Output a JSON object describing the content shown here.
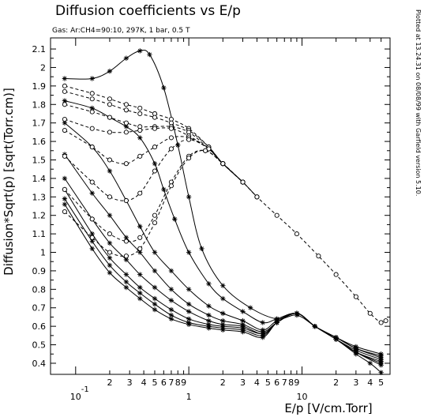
{
  "chart_data": {
    "type": "line",
    "title": "Diffusion coefficients vs E/p",
    "subtitle": "Gas: Ar:CH4=90:10, 297K, 1 bar, 0.5 T",
    "xlabel": "E/p [V/cm.Torr]",
    "ylabel": "Diffusion*Sqrt(p) [sqrt(Torr.cm)]",
    "side_note": "Plotted at 13.24.31 on 08/08/99 with Garfield version 5.10.",
    "x_scale": "log",
    "xlim": [
      0.06,
      60
    ],
    "ylim": [
      0.34,
      2.16
    ],
    "grid": false,
    "x_decades": [
      {
        "label": "10",
        "exp": "-1",
        "value": 0.1
      },
      {
        "label": "1",
        "exp": "",
        "value": 1
      },
      {
        "label": "10",
        "exp": "",
        "value": 10
      }
    ],
    "x_minor": [
      {
        "v": 0.2,
        "label": "2"
      },
      {
        "v": 0.3,
        "label": "3"
      },
      {
        "v": 0.4,
        "label": "4"
      },
      {
        "v": 0.5,
        "label": "5"
      },
      {
        "v": 0.6,
        "label": "6"
      },
      {
        "v": 0.7,
        "label": "7"
      },
      {
        "v": 0.8,
        "label": "8"
      },
      {
        "v": 0.9,
        "label": "9"
      },
      {
        "v": 2,
        "label": "2"
      },
      {
        "v": 3,
        "label": "3"
      },
      {
        "v": 4,
        "label": "4"
      },
      {
        "v": 5,
        "label": "5"
      },
      {
        "v": 6,
        "label": "6"
      },
      {
        "v": 7,
        "label": "7"
      },
      {
        "v": 8,
        "label": "8"
      },
      {
        "v": 9,
        "label": "9"
      },
      {
        "v": 20,
        "label": "2"
      },
      {
        "v": 30,
        "label": "3"
      },
      {
        "v": 40,
        "label": "4"
      },
      {
        "v": 50,
        "label": "5"
      }
    ],
    "y_ticks": [
      {
        "v": 0.4,
        "label": "0.4"
      },
      {
        "v": 0.5,
        "label": "0.5"
      },
      {
        "v": 0.6,
        "label": "0.6"
      },
      {
        "v": 0.7,
        "label": "0.7"
      },
      {
        "v": 0.8,
        "label": "0.8"
      },
      {
        "v": 0.9,
        "label": "0.9"
      },
      {
        "v": 1.0,
        "label": "1"
      },
      {
        "v": 1.1,
        "label": "1.1"
      },
      {
        "v": 1.2,
        "label": "1.2"
      },
      {
        "v": 1.3,
        "label": "1.3"
      },
      {
        "v": 1.4,
        "label": "1.4"
      },
      {
        "v": 1.5,
        "label": "1.5"
      },
      {
        "v": 1.6,
        "label": "1.6"
      },
      {
        "v": 1.7,
        "label": "1.7"
      },
      {
        "v": 1.8,
        "label": "1.8"
      },
      {
        "v": 1.9,
        "label": "1.9"
      },
      {
        "v": 2.0,
        "label": "2"
      },
      {
        "v": 2.1,
        "label": "2.1"
      }
    ],
    "series": [
      {
        "style": "solid",
        "marker": "star",
        "values": [
          [
            0.08,
            1.94
          ],
          [
            0.14,
            1.94
          ],
          [
            0.2,
            1.98
          ],
          [
            0.28,
            2.05
          ],
          [
            0.37,
            2.09
          ],
          [
            0.45,
            2.07
          ],
          [
            0.6,
            1.89
          ],
          [
            0.8,
            1.58
          ],
          [
            1.0,
            1.3
          ],
          [
            1.3,
            1.02
          ],
          [
            2.0,
            0.82
          ],
          [
            3.5,
            0.7
          ],
          [
            6.0,
            0.64
          ],
          [
            9.0,
            0.66
          ],
          [
            13.0,
            0.6
          ],
          [
            20.0,
            0.53
          ],
          [
            30.0,
            0.45
          ],
          [
            40.0,
            0.4
          ],
          [
            50.0,
            0.35
          ]
        ]
      },
      {
        "style": "solid",
        "marker": "star",
        "values": [
          [
            0.08,
            1.82
          ],
          [
            0.14,
            1.78
          ],
          [
            0.2,
            1.73
          ],
          [
            0.28,
            1.68
          ],
          [
            0.37,
            1.62
          ],
          [
            0.5,
            1.48
          ],
          [
            0.6,
            1.34
          ],
          [
            0.75,
            1.18
          ],
          [
            1.0,
            1.0
          ],
          [
            1.5,
            0.83
          ],
          [
            2.0,
            0.75
          ],
          [
            3.0,
            0.68
          ],
          [
            4.5,
            0.62
          ],
          [
            6.0,
            0.64
          ],
          [
            9.0,
            0.67
          ],
          [
            13.0,
            0.6
          ],
          [
            20.0,
            0.53
          ],
          [
            30.0,
            0.46
          ],
          [
            50.0,
            0.39
          ]
        ]
      },
      {
        "style": "solid",
        "marker": "star",
        "values": [
          [
            0.08,
            1.7
          ],
          [
            0.14,
            1.57
          ],
          [
            0.2,
            1.44
          ],
          [
            0.28,
            1.28
          ],
          [
            0.37,
            1.14
          ],
          [
            0.5,
            1.0
          ],
          [
            0.7,
            0.9
          ],
          [
            1.0,
            0.8
          ],
          [
            1.5,
            0.71
          ],
          [
            2.0,
            0.67
          ],
          [
            3.0,
            0.63
          ],
          [
            4.5,
            0.58
          ],
          [
            6.0,
            0.63
          ],
          [
            9.0,
            0.67
          ],
          [
            13.0,
            0.6
          ],
          [
            20.0,
            0.53
          ],
          [
            30.0,
            0.46
          ],
          [
            50.0,
            0.4
          ]
        ]
      },
      {
        "style": "solid",
        "marker": "star",
        "values": [
          [
            0.08,
            1.53
          ],
          [
            0.14,
            1.32
          ],
          [
            0.2,
            1.2
          ],
          [
            0.28,
            1.08
          ],
          [
            0.37,
            1.0
          ],
          [
            0.5,
            0.9
          ],
          [
            0.7,
            0.8
          ],
          [
            1.0,
            0.72
          ],
          [
            1.5,
            0.66
          ],
          [
            2.0,
            0.63
          ],
          [
            3.0,
            0.61
          ],
          [
            4.5,
            0.57
          ],
          [
            6.0,
            0.62
          ],
          [
            9.0,
            0.67
          ],
          [
            13.0,
            0.6
          ],
          [
            20.0,
            0.53
          ],
          [
            30.0,
            0.46
          ],
          [
            50.0,
            0.41
          ]
        ]
      },
      {
        "style": "solid",
        "marker": "star",
        "values": [
          [
            0.08,
            1.4
          ],
          [
            0.14,
            1.18
          ],
          [
            0.2,
            1.05
          ],
          [
            0.28,
            0.96
          ],
          [
            0.37,
            0.88
          ],
          [
            0.5,
            0.81
          ],
          [
            0.7,
            0.74
          ],
          [
            1.0,
            0.68
          ],
          [
            1.5,
            0.63
          ],
          [
            2.0,
            0.61
          ],
          [
            3.0,
            0.6
          ],
          [
            4.5,
            0.56
          ],
          [
            6.0,
            0.62
          ],
          [
            9.0,
            0.67
          ],
          [
            13.0,
            0.6
          ],
          [
            20.0,
            0.53
          ],
          [
            30.0,
            0.47
          ],
          [
            50.0,
            0.42
          ]
        ]
      },
      {
        "style": "solid",
        "marker": "star",
        "values": [
          [
            0.08,
            1.34
          ],
          [
            0.14,
            1.1
          ],
          [
            0.2,
            0.97
          ],
          [
            0.28,
            0.88
          ],
          [
            0.37,
            0.81
          ],
          [
            0.5,
            0.75
          ],
          [
            0.7,
            0.69
          ],
          [
            1.0,
            0.64
          ],
          [
            1.5,
            0.61
          ],
          [
            2.0,
            0.6
          ],
          [
            3.0,
            0.59
          ],
          [
            4.5,
            0.56
          ],
          [
            6.0,
            0.62
          ],
          [
            9.0,
            0.67
          ],
          [
            13.0,
            0.6
          ],
          [
            20.0,
            0.54
          ],
          [
            30.0,
            0.48
          ],
          [
            50.0,
            0.43
          ]
        ]
      },
      {
        "style": "solid",
        "marker": "star",
        "values": [
          [
            0.08,
            1.29
          ],
          [
            0.14,
            1.06
          ],
          [
            0.2,
            0.93
          ],
          [
            0.28,
            0.84
          ],
          [
            0.37,
            0.78
          ],
          [
            0.5,
            0.72
          ],
          [
            0.7,
            0.66
          ],
          [
            1.0,
            0.62
          ],
          [
            1.5,
            0.6
          ],
          [
            2.0,
            0.59
          ],
          [
            3.0,
            0.58
          ],
          [
            4.5,
            0.55
          ],
          [
            6.0,
            0.62
          ],
          [
            9.0,
            0.67
          ],
          [
            13.0,
            0.6
          ],
          [
            20.0,
            0.54
          ],
          [
            30.0,
            0.48
          ],
          [
            50.0,
            0.44
          ]
        ]
      },
      {
        "style": "solid",
        "marker": "star",
        "values": [
          [
            0.08,
            1.26
          ],
          [
            0.14,
            1.02
          ],
          [
            0.2,
            0.89
          ],
          [
            0.28,
            0.81
          ],
          [
            0.37,
            0.75
          ],
          [
            0.5,
            0.69
          ],
          [
            0.7,
            0.64
          ],
          [
            1.0,
            0.61
          ],
          [
            1.5,
            0.59
          ],
          [
            2.0,
            0.58
          ],
          [
            3.0,
            0.57
          ],
          [
            4.5,
            0.54
          ],
          [
            6.0,
            0.62
          ],
          [
            9.0,
            0.67
          ],
          [
            13.0,
            0.6
          ],
          [
            20.0,
            0.54
          ],
          [
            30.0,
            0.49
          ],
          [
            50.0,
            0.45
          ]
        ]
      },
      {
        "style": "dashed",
        "marker": "circle",
        "values": [
          [
            0.08,
            1.9
          ],
          [
            0.14,
            1.86
          ],
          [
            0.2,
            1.83
          ],
          [
            0.28,
            1.8
          ],
          [
            0.37,
            1.78
          ],
          [
            0.5,
            1.75
          ],
          [
            0.7,
            1.72
          ],
          [
            1.0,
            1.67
          ],
          [
            1.5,
            1.57
          ],
          [
            2.0,
            1.48
          ],
          [
            3.0,
            1.38
          ],
          [
            4.0,
            1.3
          ],
          [
            6.0,
            1.2
          ],
          [
            9.0,
            1.1
          ],
          [
            14.0,
            0.98
          ],
          [
            20.0,
            0.88
          ],
          [
            30.0,
            0.76
          ],
          [
            40.0,
            0.67
          ],
          [
            50.0,
            0.62
          ],
          [
            55.0,
            0.63
          ]
        ]
      },
      {
        "style": "dashed",
        "marker": "circle",
        "values": [
          [
            0.08,
            1.87
          ],
          [
            0.14,
            1.83
          ],
          [
            0.2,
            1.8
          ],
          [
            0.28,
            1.77
          ],
          [
            0.37,
            1.75
          ],
          [
            0.5,
            1.73
          ],
          [
            0.7,
            1.7
          ],
          [
            1.0,
            1.66
          ],
          [
            1.5,
            1.57
          ],
          [
            2.0,
            1.48
          ],
          [
            3.0,
            1.38
          ],
          [
            4.0,
            1.3
          ]
        ]
      },
      {
        "style": "dashed",
        "marker": "circle",
        "values": [
          [
            0.08,
            1.8
          ],
          [
            0.14,
            1.76
          ],
          [
            0.2,
            1.73
          ],
          [
            0.28,
            1.7
          ],
          [
            0.37,
            1.68
          ],
          [
            0.5,
            1.68
          ],
          [
            0.7,
            1.68
          ],
          [
            1.0,
            1.65
          ],
          [
            1.5,
            1.56
          ],
          [
            2.0,
            1.48
          ],
          [
            3.0,
            1.38
          ],
          [
            4.0,
            1.3
          ]
        ]
      },
      {
        "style": "dashed",
        "marker": "circle",
        "values": [
          [
            0.08,
            1.72
          ],
          [
            0.14,
            1.67
          ],
          [
            0.2,
            1.65
          ],
          [
            0.28,
            1.65
          ],
          [
            0.37,
            1.66
          ],
          [
            0.5,
            1.67
          ],
          [
            0.7,
            1.67
          ],
          [
            1.0,
            1.63
          ],
          [
            1.5,
            1.56
          ],
          [
            2.0,
            1.48
          ],
          [
            3.0,
            1.38
          ]
        ]
      },
      {
        "style": "dashed",
        "marker": "circle",
        "values": [
          [
            0.08,
            1.66
          ],
          [
            0.14,
            1.57
          ],
          [
            0.2,
            1.5
          ],
          [
            0.28,
            1.48
          ],
          [
            0.37,
            1.52
          ],
          [
            0.5,
            1.57
          ],
          [
            0.7,
            1.62
          ],
          [
            1.0,
            1.62
          ],
          [
            1.5,
            1.56
          ],
          [
            2.0,
            1.48
          ],
          [
            3.0,
            1.38
          ]
        ]
      },
      {
        "style": "dashed",
        "marker": "circle",
        "values": [
          [
            0.08,
            1.52
          ],
          [
            0.14,
            1.38
          ],
          [
            0.2,
            1.3
          ],
          [
            0.28,
            1.28
          ],
          [
            0.37,
            1.32
          ],
          [
            0.5,
            1.44
          ],
          [
            0.7,
            1.56
          ],
          [
            1.0,
            1.61
          ],
          [
            1.5,
            1.56
          ],
          [
            2.0,
            1.48
          ],
          [
            3.0,
            1.38
          ]
        ]
      },
      {
        "style": "dashed",
        "marker": "circle",
        "values": [
          [
            0.08,
            1.34
          ],
          [
            0.14,
            1.18
          ],
          [
            0.2,
            1.1
          ],
          [
            0.28,
            1.06
          ],
          [
            0.37,
            1.08
          ],
          [
            0.5,
            1.2
          ],
          [
            0.7,
            1.38
          ],
          [
            1.0,
            1.52
          ],
          [
            1.4,
            1.55
          ],
          [
            2.0,
            1.48
          ],
          [
            3.0,
            1.38
          ]
        ]
      },
      {
        "style": "dashed",
        "marker": "circle",
        "values": [
          [
            0.08,
            1.22
          ],
          [
            0.14,
            1.08
          ],
          [
            0.2,
            1.0
          ],
          [
            0.28,
            0.98
          ],
          [
            0.37,
            1.02
          ],
          [
            0.5,
            1.16
          ],
          [
            0.7,
            1.36
          ],
          [
            1.0,
            1.51
          ],
          [
            1.4,
            1.55
          ],
          [
            2.0,
            1.48
          ],
          [
            3.0,
            1.38
          ]
        ]
      }
    ]
  }
}
